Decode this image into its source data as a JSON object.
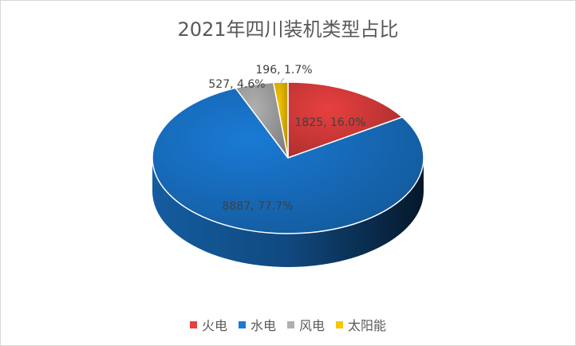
{
  "chart_data": {
    "type": "pie",
    "title": "2021年四川装机类型占比",
    "categories": [
      "火电",
      "水电",
      "风电",
      "太阳能"
    ],
    "values": [
      1825,
      8887,
      527,
      196
    ],
    "percent_labels": [
      "16.0%",
      "77.7%",
      "4.6%",
      "1.7%"
    ],
    "data_labels": [
      "1825, 16.0%",
      "8887, 77.7%",
      "527, 4.6%",
      "196, 1.7%"
    ],
    "colors": [
      "#e8403f",
      "#1a7ad4",
      "#b0b0b0",
      "#f7c600"
    ],
    "legend_position": "bottom",
    "style": "3d"
  }
}
